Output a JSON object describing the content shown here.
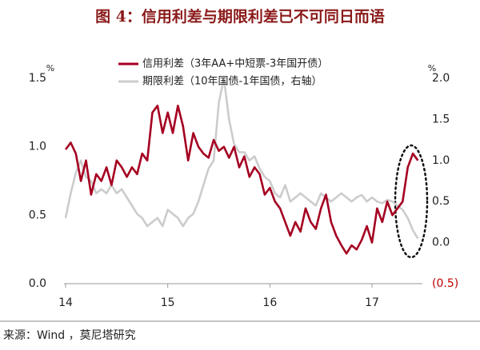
{
  "chart_data": {
    "type": "line",
    "title": "图 4：信用利差与期限利差已不可同日而语",
    "source": "来源：Wind ，莫尼塔研究",
    "y_unit": "%",
    "y2_unit": "%",
    "x": [
      2014.0,
      2014.05,
      2014.1,
      2014.15,
      2014.2,
      2014.25,
      2014.3,
      2014.35,
      2014.4,
      2014.45,
      2014.5,
      2014.55,
      2014.6,
      2014.65,
      2014.7,
      2014.75,
      2014.8,
      2014.85,
      2014.9,
      2014.95,
      2015.0,
      2015.05,
      2015.1,
      2015.15,
      2015.2,
      2015.25,
      2015.3,
      2015.35,
      2015.4,
      2015.45,
      2015.5,
      2015.55,
      2015.6,
      2015.65,
      2015.7,
      2015.75,
      2015.8,
      2015.85,
      2015.9,
      2015.95,
      2016.0,
      2016.05,
      2016.1,
      2016.15,
      2016.2,
      2016.25,
      2016.3,
      2016.35,
      2016.4,
      2016.45,
      2016.5,
      2016.55,
      2016.6,
      2016.65,
      2016.7,
      2016.75,
      2016.8,
      2016.85,
      2016.9,
      2016.95,
      2017.0,
      2017.05,
      2017.1,
      2017.15,
      2017.2,
      2017.25,
      2017.3,
      2017.35,
      2017.4,
      2017.45
    ],
    "xlim": [
      2014,
      2017.47
    ],
    "xticks": [
      {
        "value": 2014,
        "label": "14"
      },
      {
        "value": 2015,
        "label": "15"
      },
      {
        "value": 2016,
        "label": "16"
      },
      {
        "value": 2017,
        "label": "17"
      }
    ],
    "ylim": [
      0,
      1.5
    ],
    "yticks": [
      {
        "value": 0,
        "label": "0.0"
      },
      {
        "value": 0.5,
        "label": "0.5"
      },
      {
        "value": 1,
        "label": "1.0"
      },
      {
        "value": 1.5,
        "label": "1.5"
      }
    ],
    "y2lim": [
      -0.5,
      2.0
    ],
    "y2ticks": [
      {
        "value": -0.5,
        "label": "(0.5)"
      },
      {
        "value": 0,
        "label": "0.0"
      },
      {
        "value": 0.5,
        "label": "0.5"
      },
      {
        "value": 1,
        "label": "1.0"
      },
      {
        "value": 1.5,
        "label": "1.5"
      },
      {
        "value": 2,
        "label": "2.0"
      }
    ],
    "series": [
      {
        "name": "信用利差（3年AA+中短票-3年国开债）",
        "color": "#a50021",
        "values": [
          0.98,
          1.03,
          0.95,
          0.75,
          0.9,
          0.65,
          0.8,
          0.75,
          0.85,
          0.72,
          0.9,
          0.85,
          0.78,
          0.85,
          0.8,
          0.95,
          0.9,
          1.25,
          1.3,
          1.1,
          1.25,
          1.1,
          1.3,
          1.15,
          0.9,
          1.1,
          1.0,
          0.95,
          0.92,
          1.05,
          0.97,
          1.0,
          0.92,
          1.0,
          0.85,
          0.93,
          0.78,
          0.85,
          0.8,
          0.65,
          0.7,
          0.6,
          0.55,
          0.45,
          0.35,
          0.45,
          0.38,
          0.55,
          0.45,
          0.4,
          0.55,
          0.65,
          0.45,
          0.35,
          0.28,
          0.22,
          0.28,
          0.25,
          0.32,
          0.42,
          0.3,
          0.55,
          0.45,
          0.6,
          0.5,
          0.55,
          0.6,
          0.85,
          0.95,
          0.9
        ]
      },
      {
        "name": "期限利差（10年国债-1年国债，右轴）",
        "color": "#cccccc",
        "axis": "y2",
        "values": [
          0.3,
          0.6,
          0.85,
          1.0,
          0.8,
          0.75,
          0.6,
          0.65,
          0.6,
          0.7,
          0.6,
          0.65,
          0.55,
          0.45,
          0.35,
          0.3,
          0.2,
          0.25,
          0.3,
          0.2,
          0.4,
          0.35,
          0.3,
          0.2,
          0.3,
          0.35,
          0.5,
          0.7,
          0.9,
          1.0,
          1.7,
          2.0,
          1.5,
          1.2,
          1.1,
          1.1,
          1.0,
          1.05,
          0.9,
          0.8,
          0.75,
          0.6,
          0.55,
          0.7,
          0.5,
          0.55,
          0.6,
          0.55,
          0.5,
          0.45,
          0.6,
          0.55,
          0.5,
          0.55,
          0.6,
          0.55,
          0.5,
          0.55,
          0.58,
          0.5,
          0.55,
          0.5,
          0.48,
          0.52,
          0.5,
          0.45,
          0.4,
          0.3,
          0.15,
          0.05
        ]
      }
    ]
  }
}
